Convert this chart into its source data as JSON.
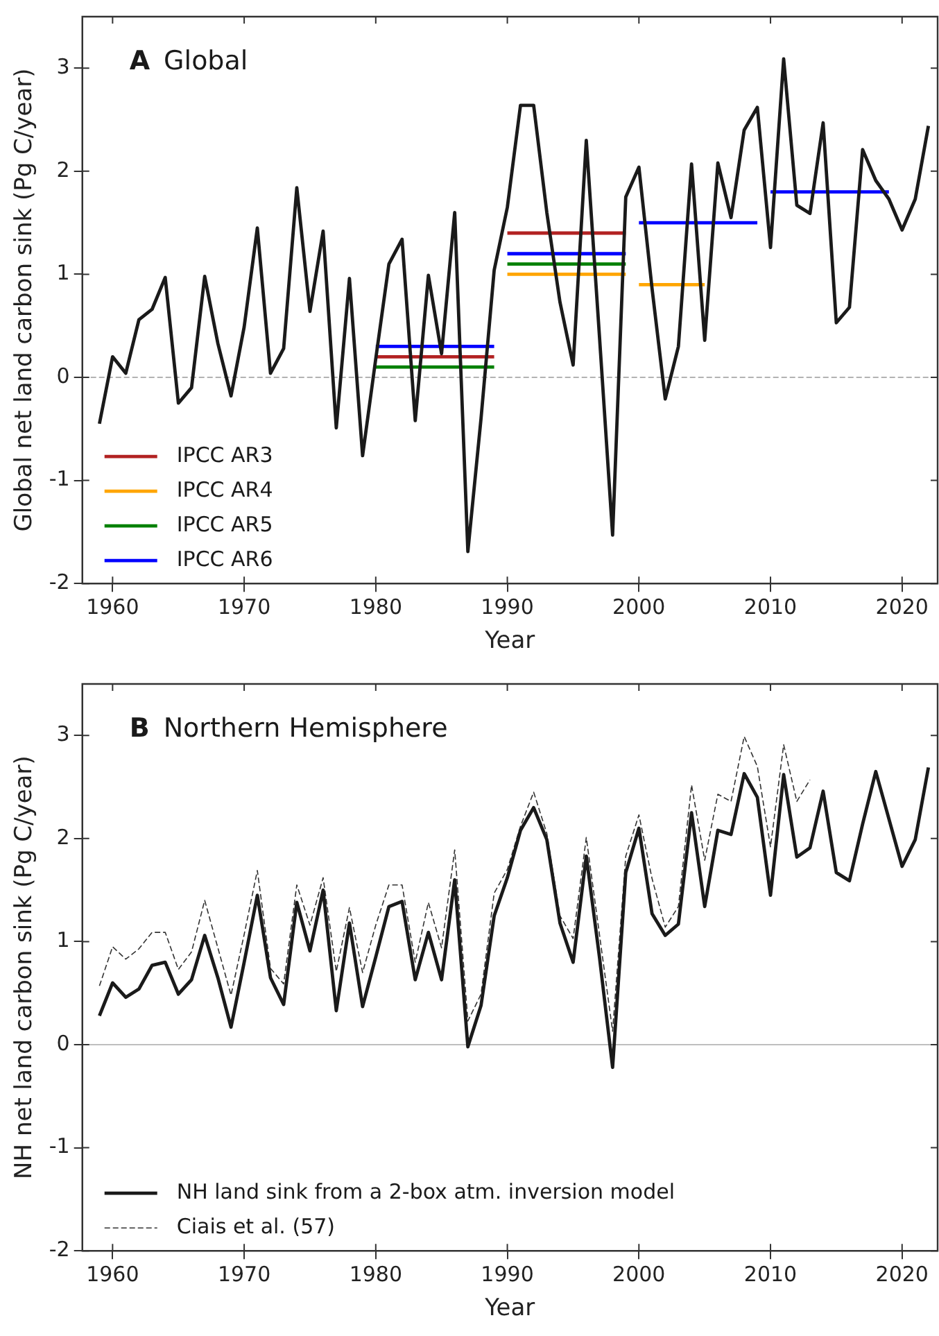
{
  "chart_data": [
    {
      "type": "line",
      "title": "A Global",
      "xlabel": "Year",
      "ylabel": "Global net land carbon sink (Pg C/year)",
      "x": [
        1959,
        1960,
        1961,
        1962,
        1963,
        1964,
        1965,
        1966,
        1967,
        1968,
        1969,
        1970,
        1971,
        1972,
        1973,
        1974,
        1975,
        1976,
        1977,
        1978,
        1979,
        1980,
        1981,
        1982,
        1983,
        1984,
        1985,
        1986,
        1987,
        1988,
        1989,
        1990,
        1991,
        1992,
        1993,
        1994,
        1995,
        1996,
        1997,
        1998,
        1999,
        2000,
        2001,
        2002,
        2003,
        2004,
        2005,
        2006,
        2007,
        2008,
        2009,
        2010,
        2011,
        2012,
        2013,
        2014,
        2015,
        2016,
        2017,
        2018,
        2019,
        2020,
        2021,
        2022
      ],
      "series": [
        {
          "color": "#1a1a1a",
          "values": [
            -0.45,
            0.2,
            0.04,
            0.56,
            0.66,
            0.97,
            -0.25,
            -0.1,
            0.98,
            0.33,
            -0.18,
            0.49,
            1.45,
            0.04,
            0.28,
            1.84,
            0.64,
            1.42,
            -0.49,
            0.96,
            -0.76,
            0.18,
            1.1,
            1.34,
            -0.42,
            0.99,
            0.23,
            1.6,
            -1.69,
            -0.4,
            1.04,
            1.65,
            2.64,
            2.64,
            1.6,
            0.73,
            0.12,
            2.3,
            0.4,
            -1.53,
            1.75,
            2.04,
            0.86,
            -0.21,
            0.3,
            2.07,
            0.36,
            2.08,
            1.55,
            2.4,
            2.62,
            1.26,
            3.09,
            1.67,
            1.59,
            2.47,
            0.53,
            0.68,
            2.21,
            1.91,
            1.73,
            1.43,
            1.73,
            2.44
          ]
        },
        {
          "name": "IPCC AR3",
          "color": "#b22222",
          "x": [
            1980,
            1989
          ],
          "values": [
            0.2,
            0.2
          ]
        },
        {
          "color": "#b22222",
          "x": [
            1990,
            1999
          ],
          "values": [
            1.4,
            1.4
          ]
        },
        {
          "name": "IPCC AR4",
          "color": "#ffa500",
          "x": [
            1990,
            1999
          ],
          "values": [
            1.0,
            1.0
          ]
        },
        {
          "color": "#ffa500",
          "x": [
            2000,
            2005
          ],
          "values": [
            0.9,
            0.9
          ]
        },
        {
          "name": "IPCC AR5",
          "color": "#008000",
          "x": [
            1980,
            1989
          ],
          "values": [
            0.1,
            0.1
          ]
        },
        {
          "color": "#008000",
          "x": [
            1990,
            1999
          ],
          "values": [
            1.1,
            1.1
          ]
        },
        {
          "name": "IPCC AR6",
          "color": "#0000ff",
          "x": [
            1980,
            1989
          ],
          "values": [
            0.3,
            0.3
          ]
        },
        {
          "color": "#0000ff",
          "x": [
            1990,
            1999
          ],
          "values": [
            1.2,
            1.2
          ]
        },
        {
          "color": "#0000ff",
          "x": [
            2000,
            2009
          ],
          "values": [
            1.5,
            1.5
          ]
        },
        {
          "color": "#0000ff",
          "x": [
            2010,
            2019
          ],
          "values": [
            1.8,
            1.8
          ]
        }
      ],
      "xlim": [
        1957.7,
        2022.7
      ],
      "xticks": [
        1960,
        1970,
        1980,
        1990,
        2000,
        2010,
        2020
      ],
      "ylim": [
        -2,
        3.5
      ],
      "yticks": [
        -2,
        -1,
        0,
        1,
        2,
        3
      ],
      "ref_lines": [
        {
          "axis": "y",
          "value": 0,
          "color": "#999999",
          "line_style": "dashed"
        }
      ],
      "legend": "bottom left",
      "marker": "none",
      "grid": false
    },
    {
      "type": "line",
      "title": "B Northern Hemisphere",
      "xlabel": "Year",
      "ylabel": "NH net land carbon sink (Pg C/year)",
      "x": [
        1959,
        1960,
        1961,
        1962,
        1963,
        1964,
        1965,
        1966,
        1967,
        1968,
        1969,
        1970,
        1971,
        1972,
        1973,
        1974,
        1975,
        1976,
        1977,
        1978,
        1979,
        1980,
        1981,
        1982,
        1983,
        1984,
        1985,
        1986,
        1987,
        1988,
        1989,
        1990,
        1991,
        1992,
        1993,
        1994,
        1995,
        1996,
        1997,
        1998,
        1999,
        2000,
        2001,
        2002,
        2003,
        2004,
        2005,
        2006,
        2007,
        2008,
        2009,
        2010,
        2011,
        2012,
        2013,
        2014,
        2015,
        2016,
        2017,
        2018,
        2019,
        2020,
        2021,
        2022
      ],
      "series": [
        {
          "name": "NH land sink from a 2-box atm. inversion model",
          "color": "#1a1a1a",
          "values": [
            0.28,
            0.6,
            0.46,
            0.54,
            0.77,
            0.8,
            0.49,
            0.63,
            1.06,
            0.65,
            0.17,
            0.8,
            1.45,
            0.65,
            0.39,
            1.38,
            0.91,
            1.5,
            0.33,
            1.18,
            0.37,
            0.85,
            1.34,
            1.39,
            0.63,
            1.09,
            0.63,
            1.6,
            -0.02,
            0.38,
            1.25,
            1.62,
            2.08,
            2.3,
            1.99,
            1.18,
            0.8,
            1.83,
            0.85,
            -0.22,
            1.67,
            2.1,
            1.27,
            1.06,
            1.17,
            2.25,
            1.34,
            2.08,
            2.04,
            2.63,
            2.4,
            1.45,
            2.62,
            1.82,
            1.91,
            2.46,
            1.67,
            1.59,
            2.14,
            2.65,
            2.19,
            1.73,
            1.99,
            2.69
          ]
        },
        {
          "name": "Ciais et al. (57)",
          "color": "#333333",
          "line_style": "dashed",
          "x": [
            1959,
            1960,
            1961,
            1962,
            1963,
            1964,
            1965,
            1966,
            1967,
            1968,
            1969,
            1970,
            1971,
            1972,
            1973,
            1974,
            1975,
            1976,
            1977,
            1978,
            1979,
            1980,
            1981,
            1982,
            1983,
            1984,
            1985,
            1986,
            1987,
            1988,
            1989,
            1990,
            1991,
            1992,
            1993,
            1994,
            1995,
            1996,
            1997,
            1998,
            1999,
            2000,
            2001,
            2002,
            2003,
            2004,
            2005,
            2006,
            2007,
            2008,
            2009,
            2010,
            2011,
            2012,
            2013
          ],
          "values": [
            0.57,
            0.95,
            0.83,
            0.93,
            1.09,
            1.09,
            0.73,
            0.9,
            1.4,
            0.94,
            0.48,
            1.07,
            1.69,
            0.74,
            0.59,
            1.55,
            1.16,
            1.62,
            0.71,
            1.33,
            0.7,
            1.16,
            1.55,
            1.55,
            0.8,
            1.38,
            0.94,
            1.89,
            0.23,
            0.49,
            1.47,
            1.7,
            2.12,
            2.45,
            2.05,
            1.25,
            1.03,
            2.01,
            1.07,
            0.13,
            1.83,
            2.23,
            1.61,
            1.14,
            1.34,
            2.52,
            1.79,
            2.43,
            2.36,
            2.99,
            2.7,
            1.92,
            2.91,
            2.36,
            2.57
          ]
        }
      ],
      "xlim": [
        1957.7,
        2022.7
      ],
      "xticks": [
        1960,
        1970,
        1980,
        1990,
        2000,
        2010,
        2020
      ],
      "ylim": [
        -2,
        3.5
      ],
      "yticks": [
        -2,
        -1,
        0,
        1,
        2,
        3
      ],
      "ref_lines": [
        {
          "axis": "y",
          "value": 0,
          "color": "#aaaaaa",
          "line_style": "solid"
        }
      ],
      "legend": "bottom left",
      "marker": "none",
      "grid": false
    }
  ]
}
